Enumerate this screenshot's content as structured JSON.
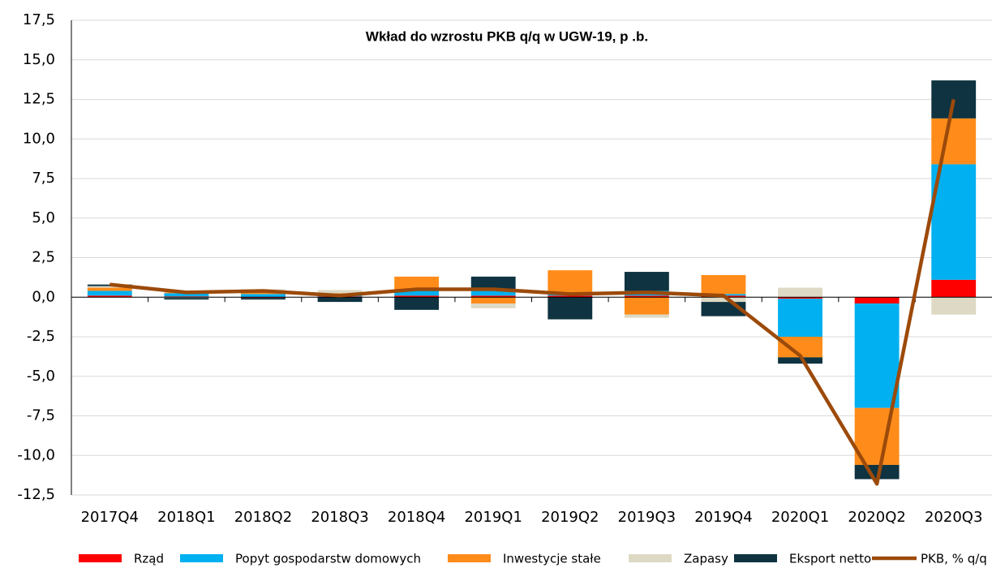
{
  "chart_data": {
    "type": "bar",
    "stacked": true,
    "title": "Wkład do wzrostu PKB q/q w UGW-19, p .b.",
    "categories": [
      "2017Q4",
      "2018Q1",
      "2018Q2",
      "2018Q3",
      "2018Q4",
      "2019Q1",
      "2019Q2",
      "2019Q3",
      "2019Q4",
      "2020Q1",
      "2020Q2",
      "2020Q3"
    ],
    "series": [
      {
        "name": "Rząd",
        "color": "#ff0000",
        "values": [
          0.1,
          0.05,
          -0.05,
          0.05,
          0.1,
          0.1,
          0.1,
          0.1,
          0.1,
          -0.1,
          -0.4,
          1.1
        ]
      },
      {
        "name": "Popyt gospodarstw domowych",
        "color": "#00b0f0",
        "values": [
          0.3,
          0.2,
          0.2,
          0.1,
          0.3,
          0.3,
          0.2,
          0.3,
          0.1,
          -2.4,
          -6.6,
          7.3
        ]
      },
      {
        "name": "Inwestycje stałe",
        "color": "#ff8c1a",
        "values": [
          0.2,
          0.05,
          0.2,
          0.1,
          0.9,
          -0.4,
          1.4,
          -1.1,
          1.2,
          -1.3,
          -3.6,
          2.9
        ]
      },
      {
        "name": "Zapasy",
        "color": "#ddd9c4",
        "values": [
          0.1,
          -0.05,
          0.1,
          0.2,
          0,
          -0.3,
          0,
          -0.2,
          -0.3,
          0.6,
          0,
          -1.1
        ]
      },
      {
        "name": "Eksport netto",
        "color": "#0f3340",
        "values": [
          0.1,
          -0.1,
          -0.1,
          -0.3,
          -0.8,
          0.9,
          -1.4,
          1.2,
          -0.9,
          -0.4,
          -0.9,
          2.4
        ]
      },
      {
        "name": "PKB, % q/q",
        "type": "line",
        "color": "#9c4a0a",
        "values": [
          0.8,
          0.3,
          0.4,
          0.1,
          0.5,
          0.5,
          0.2,
          0.3,
          0.1,
          -3.7,
          -11.8,
          12.5
        ]
      }
    ],
    "ylim": [
      -12.5,
      17.5
    ],
    "yticks": [
      {
        "value": -12.5,
        "label": "-12,5"
      },
      {
        "value": -10,
        "label": "-10,0"
      },
      {
        "value": -7.5,
        "label": "-7,5"
      },
      {
        "value": -5,
        "label": "-5,0"
      },
      {
        "value": -2.5,
        "label": "-2,5"
      },
      {
        "value": 0,
        "label": "0,0"
      },
      {
        "value": 2.5,
        "label": "2,5"
      },
      {
        "value": 5,
        "label": "5,0"
      },
      {
        "value": 7.5,
        "label": "7,5"
      },
      {
        "value": 10,
        "label": "10,0"
      },
      {
        "value": 12.5,
        "label": "12,5"
      },
      {
        "value": 15,
        "label": "15,0"
      },
      {
        "value": 17.5,
        "label": "17,5"
      }
    ],
    "grid": true,
    "legend": "bottom"
  }
}
